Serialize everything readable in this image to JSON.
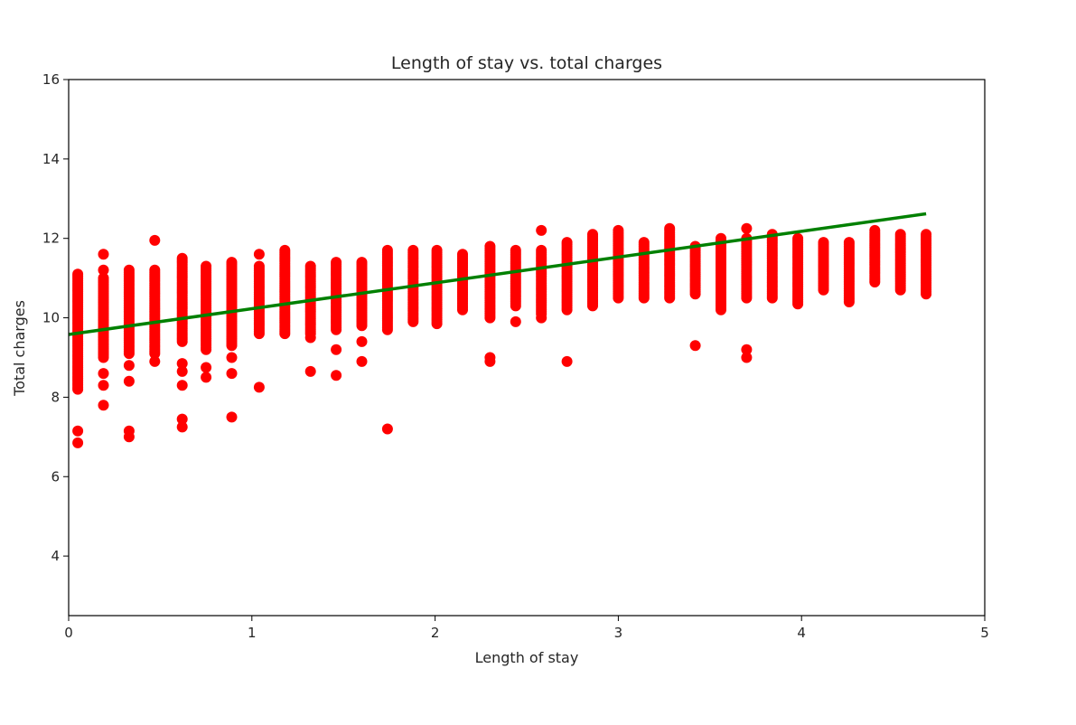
{
  "chart_data": {
    "type": "scatter",
    "title": "Length of stay vs. total charges",
    "xlabel": "Length of stay",
    "ylabel": "Total charges",
    "xlim": [
      0,
      5
    ],
    "ylim": [
      2.5,
      16
    ],
    "xticks": [
      "0",
      "1",
      "2",
      "3",
      "4",
      "5"
    ],
    "yticks": [
      "4",
      "6",
      "8",
      "10",
      "12",
      "14",
      "16"
    ],
    "grid": false,
    "colors": {
      "points": "#ff0000",
      "fit_line": "#008000"
    },
    "columns": [
      {
        "x": 0.05,
        "min": 8.2,
        "max": 11.1
      },
      {
        "x": 0.19,
        "min": 9.0,
        "max": 11.0
      },
      {
        "x": 0.33,
        "min": 9.1,
        "max": 11.2
      },
      {
        "x": 0.47,
        "min": 9.1,
        "max": 11.2
      },
      {
        "x": 0.62,
        "min": 9.4,
        "max": 11.5
      },
      {
        "x": 0.75,
        "min": 9.2,
        "max": 11.3
      },
      {
        "x": 0.89,
        "min": 9.3,
        "max": 11.4
      },
      {
        "x": 1.04,
        "min": 9.6,
        "max": 11.3
      },
      {
        "x": 1.18,
        "min": 9.6,
        "max": 11.7
      },
      {
        "x": 1.32,
        "min": 9.6,
        "max": 11.3
      },
      {
        "x": 1.46,
        "min": 9.7,
        "max": 11.4
      },
      {
        "x": 1.6,
        "min": 9.8,
        "max": 11.4
      },
      {
        "x": 1.74,
        "min": 9.7,
        "max": 11.7
      },
      {
        "x": 1.88,
        "min": 9.9,
        "max": 11.7
      },
      {
        "x": 2.01,
        "min": 9.9,
        "max": 11.7
      },
      {
        "x": 2.15,
        "min": 10.2,
        "max": 11.6
      },
      {
        "x": 2.3,
        "min": 10.0,
        "max": 11.8
      },
      {
        "x": 2.44,
        "min": 10.3,
        "max": 11.7
      },
      {
        "x": 2.58,
        "min": 10.1,
        "max": 11.7
      },
      {
        "x": 2.72,
        "min": 10.2,
        "max": 11.9
      },
      {
        "x": 2.86,
        "min": 10.3,
        "max": 12.1
      },
      {
        "x": 3.0,
        "min": 10.5,
        "max": 12.2
      },
      {
        "x": 3.14,
        "min": 10.5,
        "max": 11.9
      },
      {
        "x": 3.28,
        "min": 10.5,
        "max": 12.2
      },
      {
        "x": 3.42,
        "min": 10.6,
        "max": 11.8
      },
      {
        "x": 3.56,
        "min": 10.2,
        "max": 12.0
      },
      {
        "x": 3.7,
        "min": 10.5,
        "max": 12.0
      },
      {
        "x": 3.84,
        "min": 10.5,
        "max": 12.1
      },
      {
        "x": 3.98,
        "min": 10.4,
        "max": 12.0
      },
      {
        "x": 4.12,
        "min": 10.7,
        "max": 11.9
      },
      {
        "x": 4.26,
        "min": 10.4,
        "max": 11.9
      },
      {
        "x": 4.4,
        "min": 10.9,
        "max": 12.2
      },
      {
        "x": 4.54,
        "min": 10.7,
        "max": 12.1
      },
      {
        "x": 4.68,
        "min": 10.6,
        "max": 12.1
      }
    ],
    "outliers": [
      {
        "x": 0.05,
        "y": 7.15
      },
      {
        "x": 0.05,
        "y": 6.85
      },
      {
        "x": 0.19,
        "y": 11.6
      },
      {
        "x": 0.19,
        "y": 11.2
      },
      {
        "x": 0.19,
        "y": 8.6
      },
      {
        "x": 0.19,
        "y": 8.3
      },
      {
        "x": 0.19,
        "y": 7.8
      },
      {
        "x": 0.33,
        "y": 8.8
      },
      {
        "x": 0.33,
        "y": 8.4
      },
      {
        "x": 0.33,
        "y": 7.15
      },
      {
        "x": 0.33,
        "y": 7.0
      },
      {
        "x": 0.47,
        "y": 11.95
      },
      {
        "x": 0.47,
        "y": 8.9
      },
      {
        "x": 0.62,
        "y": 8.85
      },
      {
        "x": 0.62,
        "y": 8.65
      },
      {
        "x": 0.62,
        "y": 8.3
      },
      {
        "x": 0.62,
        "y": 7.45
      },
      {
        "x": 0.62,
        "y": 7.25
      },
      {
        "x": 0.75,
        "y": 8.75
      },
      {
        "x": 0.75,
        "y": 8.5
      },
      {
        "x": 0.89,
        "y": 9.0
      },
      {
        "x": 0.89,
        "y": 8.6
      },
      {
        "x": 0.89,
        "y": 7.5
      },
      {
        "x": 1.04,
        "y": 11.6
      },
      {
        "x": 1.04,
        "y": 8.25
      },
      {
        "x": 1.32,
        "y": 9.5
      },
      {
        "x": 1.32,
        "y": 8.65
      },
      {
        "x": 1.46,
        "y": 9.2
      },
      {
        "x": 1.46,
        "y": 8.55
      },
      {
        "x": 1.6,
        "y": 9.4
      },
      {
        "x": 1.6,
        "y": 8.9
      },
      {
        "x": 1.74,
        "y": 7.2
      },
      {
        "x": 2.01,
        "y": 9.85
      },
      {
        "x": 2.3,
        "y": 9.0
      },
      {
        "x": 2.3,
        "y": 8.9
      },
      {
        "x": 2.44,
        "y": 9.9
      },
      {
        "x": 2.58,
        "y": 12.2
      },
      {
        "x": 2.58,
        "y": 10.0
      },
      {
        "x": 2.72,
        "y": 8.9
      },
      {
        "x": 3.28,
        "y": 12.25
      },
      {
        "x": 3.42,
        "y": 9.3
      },
      {
        "x": 3.7,
        "y": 12.25
      },
      {
        "x": 3.7,
        "y": 9.2
      },
      {
        "x": 3.7,
        "y": 9.0
      },
      {
        "x": 3.98,
        "y": 10.35
      }
    ],
    "fit_line": {
      "x": [
        0.0,
        4.68
      ],
      "y": [
        9.58,
        12.62
      ]
    }
  }
}
